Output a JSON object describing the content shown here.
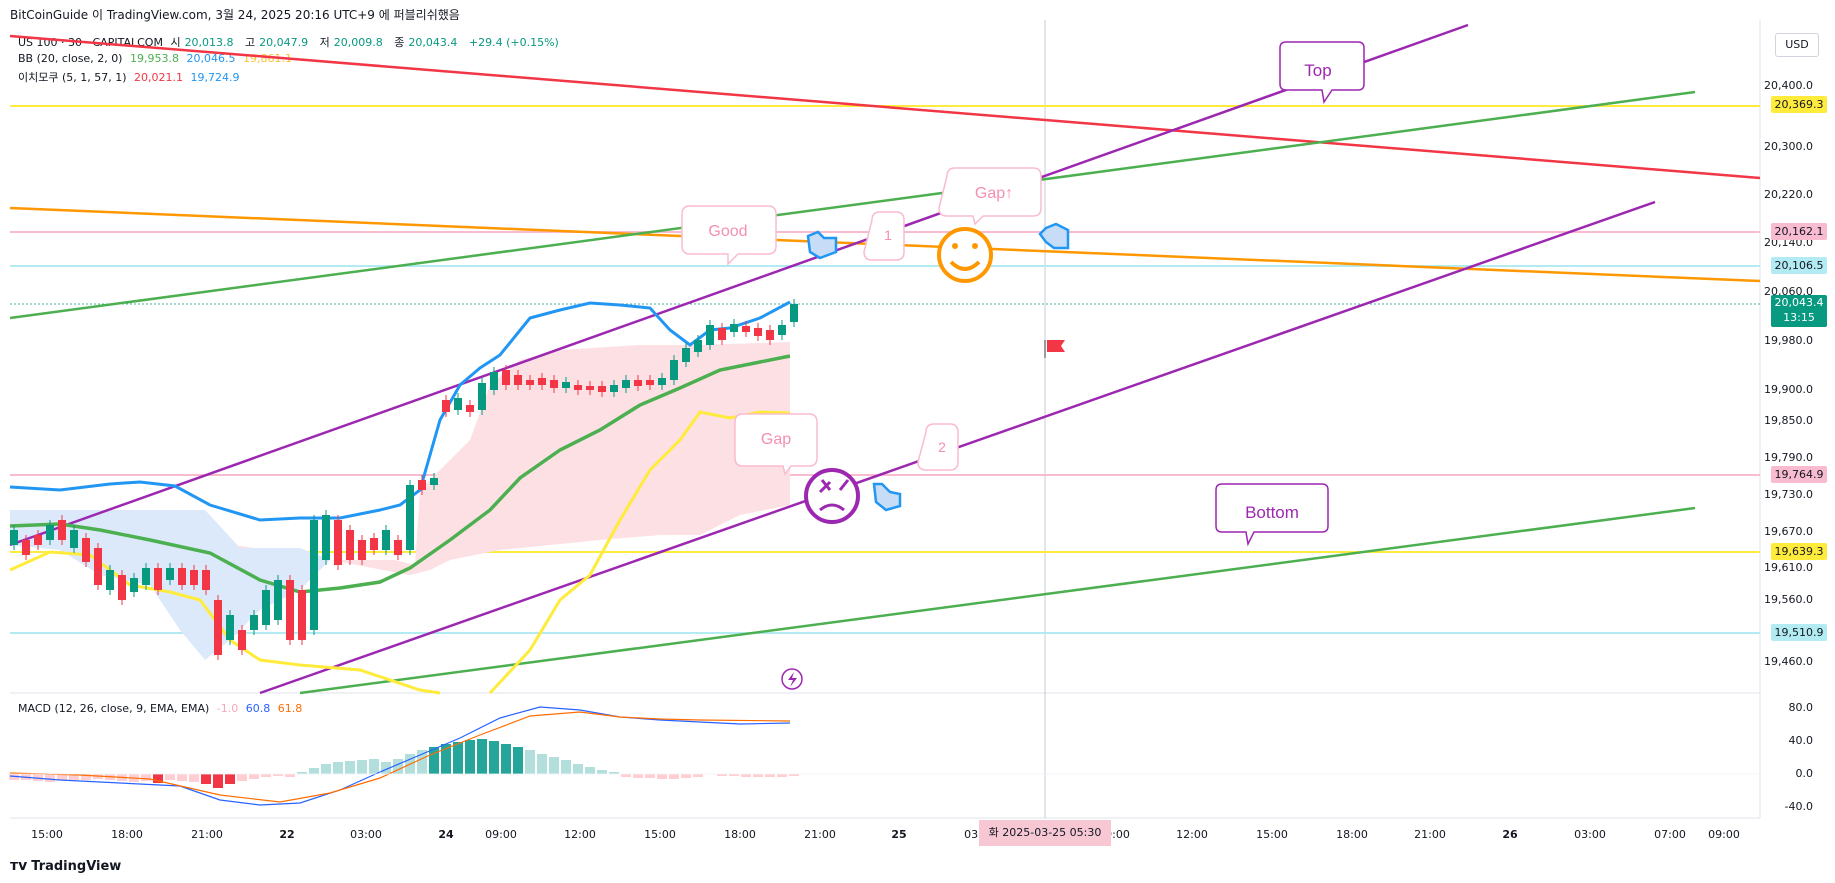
{
  "header": {
    "title": "BitCoinGuide 이 TradingView.com, 3월 24, 2025 20:16 UTC+9 에 퍼블리쉬했음"
  },
  "symbol_line": {
    "symbol": "US 100 · 30 · CAPITALCOM",
    "open_label": "시",
    "open": "20,013.8",
    "high_label": "고",
    "high": "20,047.9",
    "low_label": "저",
    "low": "20,009.8",
    "close_label": "종",
    "close": "20,043.4",
    "change": "+29.4 (+0.15%)"
  },
  "bb_line": {
    "name": "BB (20, close, 2, 0)",
    "v1": "19,953.8",
    "v2": "20,046.5",
    "v3": "19,861.1"
  },
  "ichimoku_line": {
    "name": "이치모쿠 (5, 1, 57, 1)",
    "v1": "20,021.1",
    "v2": "19,724.9"
  },
  "macd_line": {
    "name": "MACD (12, 26, close, 9, EMA, EMA)",
    "v1": "-1.0",
    "v2": "60.8",
    "v3": "61.8"
  },
  "currency": "USD",
  "price_axis": [
    "20,400.0",
    "20,300.0",
    "20,220.0",
    "20,140.0",
    "20,060.0",
    "19,980.0",
    "19,900.0",
    "19,850.0",
    "19,790.0",
    "19,730.0",
    "19,670.0",
    "19,610.0",
    "19,560.0",
    "19,460.0"
  ],
  "price_boxes": {
    "p1": "20,369.3",
    "p2": "20,162.1",
    "p3": "20,106.5",
    "current": "20,043.4",
    "countdown": "13:15",
    "p4": "19,764.9",
    "p5": "19,639.3",
    "p6": "19,510.9"
  },
  "macd_axis": [
    "80.0",
    "40.0",
    "0.0",
    "-40.0"
  ],
  "time_axis": [
    "15:00",
    "18:00",
    "21:00",
    "22",
    "03:00",
    "24",
    "09:00",
    "12:00",
    "15:00",
    "18:00",
    "21:00",
    "25",
    "03:00",
    "09:00",
    "12:00",
    "15:00",
    "18:00",
    "21:00",
    "26",
    "03:00",
    "07:00",
    "09:00"
  ],
  "crosshair_date": "화 2025-03-25   05:30",
  "annotations": {
    "top": "Top",
    "bottom": "Bottom",
    "good": "Good",
    "gap": "Gap",
    "gap_upper": "Gap↑",
    "q1": "1",
    "q2": "2"
  },
  "colors": {
    "up": "#089981",
    "down": "#f23645",
    "purple": "#9c27b0",
    "green": "#4caf50",
    "red": "#f23645",
    "orange": "#ff9800",
    "yellow": "#ffeb3b",
    "blue": "#2196f3"
  },
  "footer": {
    "brand": "TradingView"
  }
}
